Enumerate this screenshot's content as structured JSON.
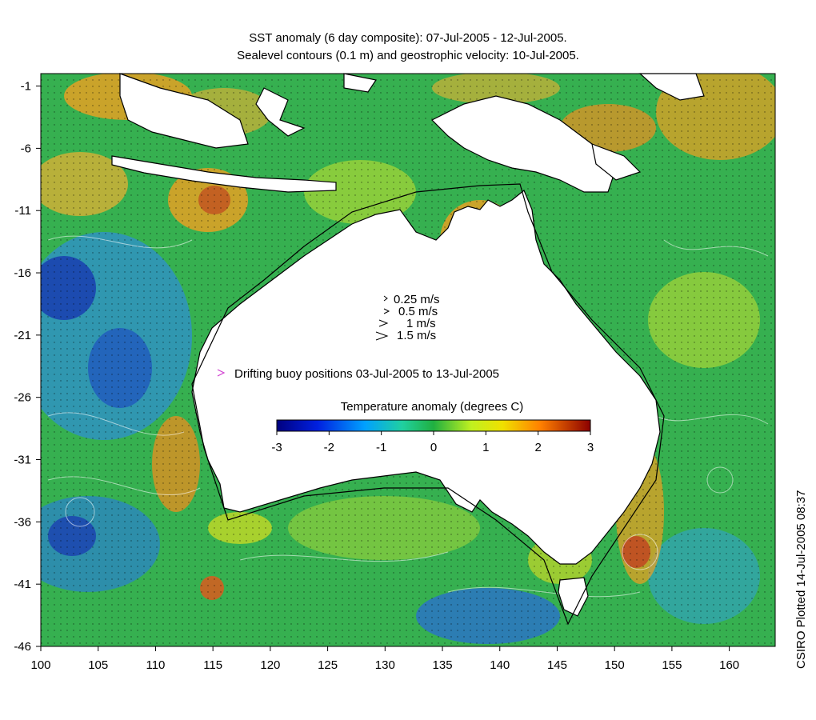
{
  "title_line1": "SST anomaly (6 day composite): 07-Jul-2005 - 12-Jul-2005.",
  "title_line2": "Sealevel contours (0.1 m) and geostrophic velocity: 10-Jul-2005.",
  "side_label": "CSIRO Plotted 14-Jul-2005 08:37",
  "x_ticks": [
    "100",
    "105",
    "110",
    "115",
    "120",
    "125",
    "130",
    "135",
    "140",
    "145",
    "150",
    "155",
    "160"
  ],
  "y_ticks": [
    "-1",
    "-6",
    "-11",
    "-16",
    "-21",
    "-26",
    "-31",
    "-36",
    "-41",
    "-46"
  ],
  "velocity_legend": [
    "0.25 m/s",
    "0.5 m/s",
    "1 m/s",
    "1.5 m/s"
  ],
  "buoy_label": "Drifting buoy positions 03-Jul-2005 to 13-Jul-2005",
  "colorbar": {
    "title": "Temperature anomaly (degrees C)",
    "ticks": [
      "-3",
      "-2",
      "-1",
      "0",
      "1",
      "2",
      "3"
    ]
  },
  "colors": {
    "ocean_base": "#2ea84a",
    "warm": "#f0a020",
    "cool": "#2050c8",
    "land": "#ffffff",
    "coast": "#000000",
    "buoy": "#d040d0"
  },
  "map_extent": {
    "lon": [
      100,
      164
    ],
    "lat": [
      -46,
      0
    ]
  }
}
